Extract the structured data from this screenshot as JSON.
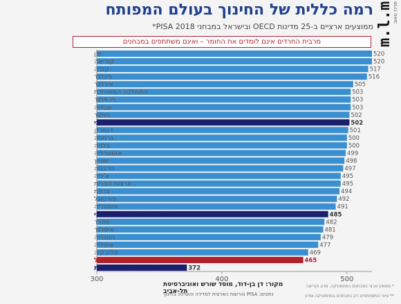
{
  "title": "רמה כללית של החינוך בעולם המפותח",
  "subtitle": "ממוצעים ארציים ב-25 מדינות OECD ובישראל במבחני PISA 2018*",
  "logo": "m.l.m",
  "logo_small": "מרכז טאוב",
  "banner": "מרבית החרדים אינם לומדים את החומר – ואינם משתתפים במבחנים",
  "source": "מקור: דן בן-דוד, מוסד שורש ואוניברסיטת תל-אביב",
  "source_data": "נתונים: PISA והרשות הארצית למדידה והערכה בחינוך",
  "note1": "* ממוצע ארצי במבחנים במתמטיקה, מדע וקריאה",
  "note2": "** ציוני המשתתפים רק במבחנים במתמטיקה ומדע",
  "colors": {
    "bar": "#3a8fd1",
    "highlight": "#1a1f6e",
    "haredi": "#b21f2d",
    "title": "#1f3f8f"
  },
  "chart_data": {
    "type": "bar",
    "orientation": "horizontal",
    "xlim": [
      300,
      520
    ],
    "xticks": [
      300,
      400,
      500
    ],
    "grid": false,
    "categories": [
      "יפן",
      "קוריאה",
      "קנדה",
      "פינלנד",
      "אירלנד",
      "הממלכה המאוחדת",
      "ניו זילנד",
      "שבדיה",
      "הולנד",
      "ישראל - יהודי ממלכתי",
      "דנמרק",
      "גרמניה",
      "בלגיה",
      "אוסטרליה",
      "שווייץ",
      "נורבגיה",
      "צ'כיה",
      "ארצות הברית",
      "צרפת",
      "פורטוגל",
      "אוסטריה",
      "ישראל - יהודי ממלכתי-דתי",
      "ספרד",
      "איסלנד",
      "הונגריה",
      "איטליה",
      "סלובקיה",
      "ישראל",
      "ישראל - דוברי ערבית"
    ],
    "values": [
      520,
      520,
      517,
      516,
      505,
      503,
      503,
      503,
      502,
      502,
      501,
      500,
      500,
      499,
      498,
      497,
      495,
      495,
      494,
      492,
      491,
      485,
      482,
      481,
      479,
      477,
      469,
      465,
      372
    ],
    "highlight": [
      "none",
      "none",
      "none",
      "none",
      "none",
      "none",
      "none",
      "none",
      "none",
      "israel",
      "none",
      "none",
      "none",
      "none",
      "none",
      "none",
      "none",
      "none",
      "none",
      "none",
      "none",
      "israel",
      "none",
      "none",
      "none",
      "none",
      "none",
      "haredi",
      "israel"
    ]
  }
}
